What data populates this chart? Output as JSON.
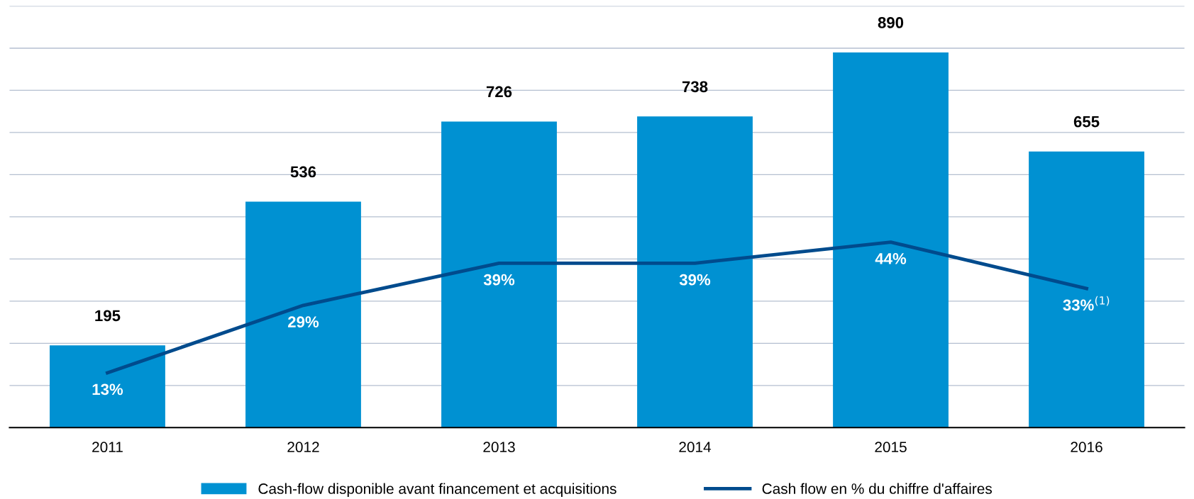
{
  "chart_data": {
    "type": "bar",
    "categories": [
      "2011",
      "2012",
      "2013",
      "2014",
      "2015",
      "2016"
    ],
    "series": [
      {
        "name": "Cash-flow disponible avant financement et acquisitions",
        "color": "#0091d2",
        "values": [
          195,
          536,
          726,
          738,
          890,
          655
        ],
        "data_labels": true
      },
      {
        "name": "Cash flow en % du chiffre d'affaires",
        "type": "line",
        "axis": "y2",
        "color": "#004b8d",
        "values": [
          13,
          29,
          39,
          39,
          44,
          33
        ],
        "value_labels": [
          "13%",
          "29%",
          "39%",
          "39%",
          "44%",
          "33%$^{(1)}$"
        ]
      }
    ],
    "ylim": [
      0,
      1000
    ],
    "yticks": [
      {
        "value": 0,
        "label": null
      },
      {
        "value": 100,
        "label": null
      },
      {
        "value": 200,
        "label": null
      },
      {
        "value": 300,
        "label": null
      },
      {
        "value": 400,
        "label": null
      },
      {
        "value": 500,
        "label": null
      },
      {
        "value": 600,
        "label": null
      },
      {
        "value": 700,
        "label": null
      },
      {
        "value": 800,
        "label": null
      },
      {
        "value": 900,
        "label": null
      },
      {
        "value": 1000,
        "label": null
      }
    ],
    "y2lim": [
      0,
      100
    ],
    "grid": "y",
    "legend": "bottom",
    "tick_labels": "x",
    "marker": "none",
    "line_style": "solid"
  }
}
